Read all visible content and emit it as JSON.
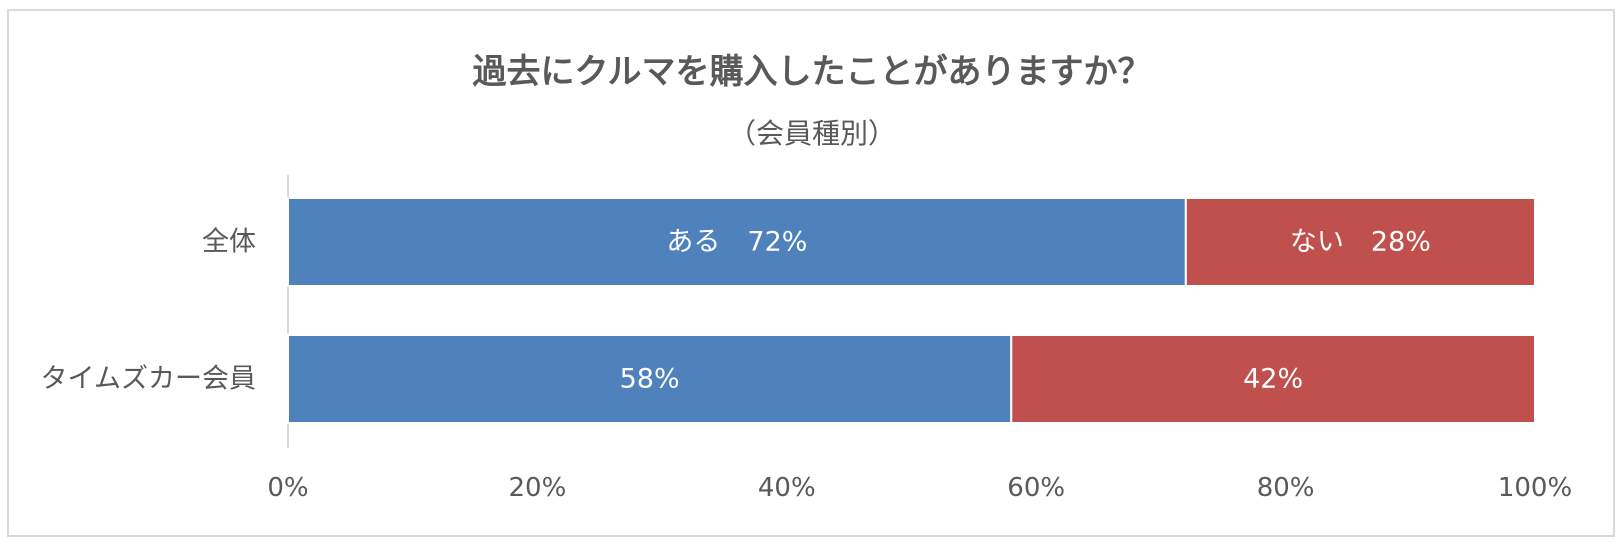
{
  "chart_data": {
    "type": "bar",
    "orientation": "horizontal",
    "stacked": true,
    "title": "過去にクルマを購入したことがありますか？",
    "subtitle": "（会員種別）",
    "categories": [
      "全体",
      "タイムズカー会員"
    ],
    "series": [
      {
        "name": "ある",
        "values": [
          72,
          58
        ],
        "color": "#4f81bd",
        "data_labels": [
          "ある　72%",
          "58%"
        ]
      },
      {
        "name": "ない",
        "values": [
          28,
          42
        ],
        "color": "#c0504d",
        "data_labels": [
          "ない　28%",
          "42%"
        ]
      }
    ],
    "xlim": [
      0,
      100
    ],
    "x_ticks": [
      "0%",
      "20%",
      "40%",
      "60%",
      "80%",
      "100%"
    ],
    "grid": false,
    "legend": "none"
  }
}
